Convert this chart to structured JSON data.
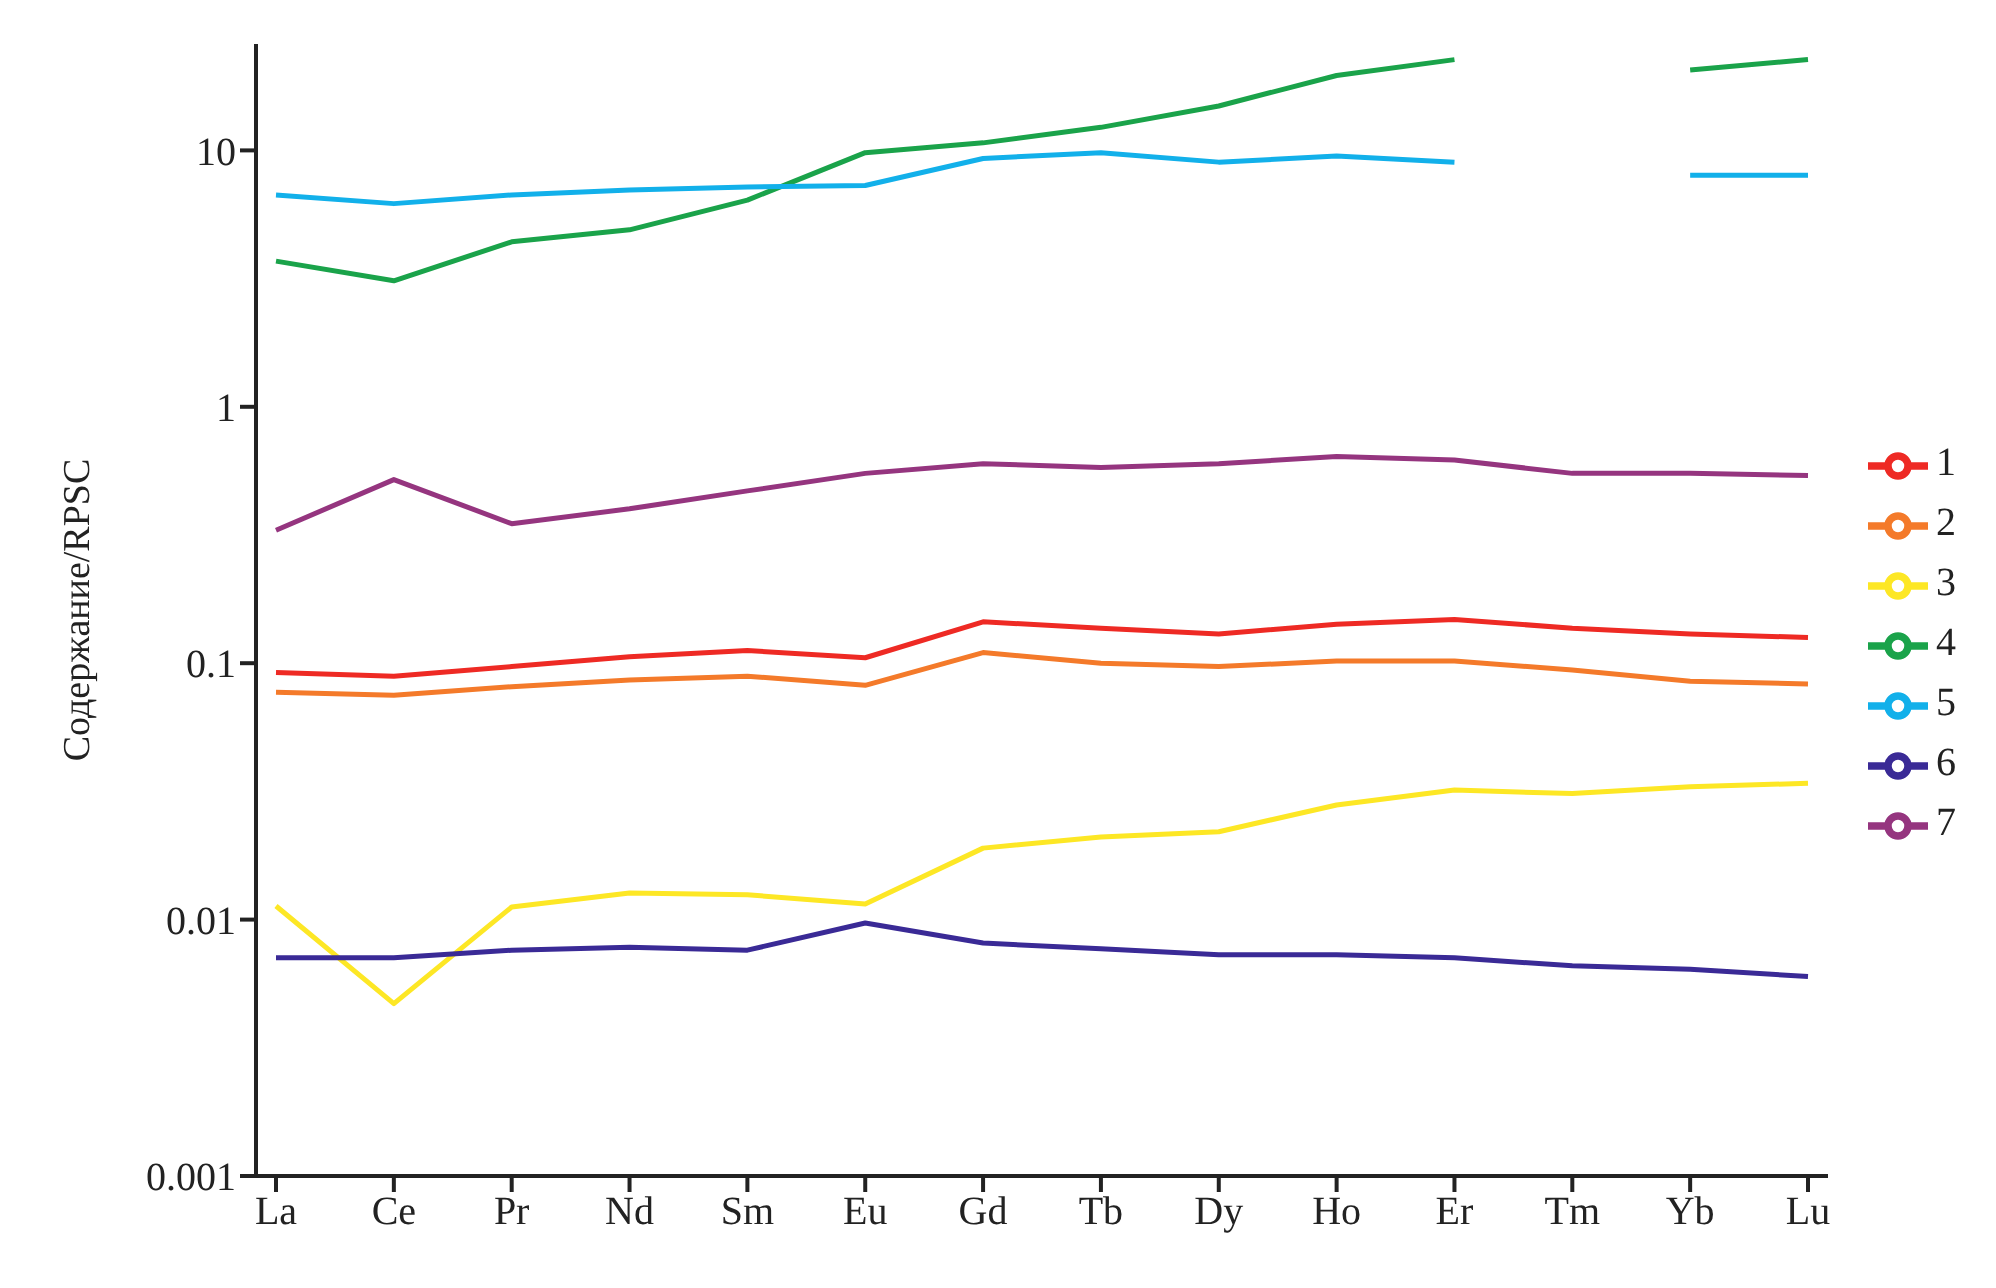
{
  "chart_data": {
    "type": "line",
    "ylabel": "Содержание/RPSC",
    "categories": [
      "La",
      "Ce",
      "Pr",
      "Nd",
      "Sm",
      "Eu",
      "Gd",
      "Tb",
      "Dy",
      "Ho",
      "Er",
      "Tm",
      "Yb",
      "Lu"
    ],
    "log": "y",
    "ylim": [
      0.001,
      26
    ],
    "yticks": [
      0.001,
      0.01,
      0.1,
      1,
      10
    ],
    "grid": false,
    "legend": "right",
    "marker": "none",
    "line_style": "solid",
    "series": [
      {
        "name": "1",
        "color": "#ee2a24",
        "values": [
          0.092,
          0.089,
          0.097,
          0.106,
          0.112,
          0.105,
          0.145,
          0.137,
          0.13,
          0.142,
          0.148,
          0.137,
          0.13,
          0.126
        ]
      },
      {
        "name": "2",
        "color": "#f47a2a",
        "values": [
          0.077,
          0.075,
          0.081,
          0.086,
          0.089,
          0.082,
          0.11,
          0.1,
          0.097,
          0.102,
          0.102,
          0.094,
          0.085,
          0.083
        ]
      },
      {
        "name": "3",
        "color": "#fde725",
        "values": [
          0.0113,
          0.0047,
          0.0112,
          0.0127,
          0.0125,
          0.0115,
          0.019,
          0.021,
          0.022,
          0.028,
          0.032,
          0.031,
          0.033,
          0.034
        ]
      },
      {
        "name": "4",
        "color": "#1aa34a",
        "values": [
          3.7,
          3.1,
          4.4,
          4.9,
          6.4,
          9.8,
          10.7,
          12.3,
          14.9,
          19.6,
          22.6,
          null,
          20.6,
          22.6
        ]
      },
      {
        "name": "5",
        "color": "#12b0ea",
        "values": [
          6.7,
          6.2,
          6.7,
          7.0,
          7.2,
          7.3,
          9.3,
          9.8,
          9.0,
          9.5,
          9.0,
          null,
          8.0,
          8.0
        ]
      },
      {
        "name": "6",
        "color": "#3a2a96",
        "values": [
          0.0071,
          0.0071,
          0.0076,
          0.0078,
          0.0076,
          0.0097,
          0.0081,
          0.0077,
          0.0073,
          0.0073,
          0.0071,
          0.0066,
          0.0064,
          0.006
        ]
      },
      {
        "name": "7",
        "color": "#95357f",
        "values": [
          0.33,
          0.52,
          0.35,
          0.4,
          0.47,
          0.55,
          0.6,
          0.58,
          0.6,
          0.64,
          0.62,
          0.55,
          0.55,
          0.54
        ]
      }
    ]
  }
}
